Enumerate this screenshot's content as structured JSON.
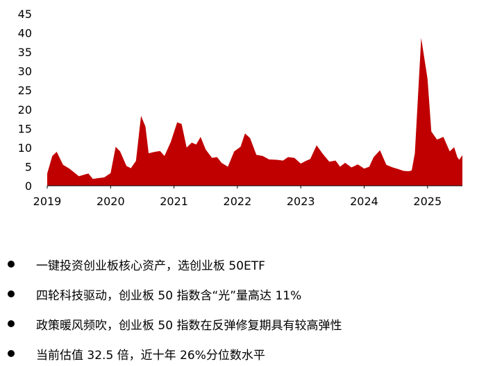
{
  "chart_data": {
    "type": "area",
    "title": "",
    "xlabel": "",
    "ylabel": "",
    "color": "#C00000",
    "ylim": [
      0,
      45
    ],
    "y_ticks": [
      0,
      5,
      10,
      15,
      20,
      25,
      30,
      35,
      40,
      45
    ],
    "xlim": [
      2019.0,
      2025.55
    ],
    "x_ticks": [
      "2019",
      "2020",
      "2021",
      "2022",
      "2023",
      "2024",
      "2025"
    ],
    "grid": false,
    "legend": "none",
    "x": [
      2019.0,
      2019.08,
      2019.15,
      2019.25,
      2019.35,
      2019.5,
      2019.6,
      2019.65,
      2019.72,
      2019.8,
      2019.9,
      2020.0,
      2020.08,
      2020.15,
      2020.25,
      2020.32,
      2020.4,
      2020.48,
      2020.55,
      2020.6,
      2020.7,
      2020.78,
      2020.85,
      2020.95,
      2021.05,
      2021.12,
      2021.2,
      2021.28,
      2021.35,
      2021.42,
      2021.5,
      2021.6,
      2021.68,
      2021.75,
      2021.85,
      2021.95,
      2022.05,
      2022.12,
      2022.2,
      2022.3,
      2022.4,
      2022.5,
      2022.62,
      2022.72,
      2022.8,
      2022.9,
      2023.0,
      2023.08,
      2023.15,
      2023.25,
      2023.35,
      2023.45,
      2023.55,
      2023.62,
      2023.7,
      2023.8,
      2023.9,
      2024.0,
      2024.08,
      2024.15,
      2024.25,
      2024.35,
      2024.45,
      2024.55,
      2024.62,
      2024.7,
      2024.75,
      2024.8,
      2024.9,
      2025.0,
      2025.06,
      2025.15,
      2025.25,
      2025.35,
      2025.42,
      2025.47,
      2025.5,
      2025.55
    ],
    "values": [
      3.2,
      7.8,
      8.9,
      5.5,
      4.5,
      2.5,
      3.0,
      3.2,
      1.8,
      2.0,
      2.2,
      3.3,
      10.2,
      9.0,
      5.2,
      4.6,
      6.5,
      18.3,
      15.5,
      8.5,
      8.9,
      9.1,
      7.8,
      11.5,
      16.6,
      16.2,
      10.0,
      11.3,
      10.8,
      12.8,
      9.5,
      7.3,
      7.5,
      6.0,
      5.0,
      9.0,
      10.2,
      13.7,
      12.5,
      8.1,
      7.8,
      6.9,
      6.8,
      6.6,
      7.5,
      7.3,
      5.8,
      6.5,
      7.0,
      10.6,
      8.3,
      6.3,
      6.6,
      5.0,
      6.0,
      4.8,
      5.6,
      4.5,
      5.0,
      7.5,
      9.3,
      5.5,
      4.8,
      4.3,
      3.9,
      3.8,
      4.0,
      8.5,
      38.7,
      28.0,
      14.2,
      12.1,
      12.8,
      9.0,
      10.1,
      7.5,
      6.8,
      8.0
    ]
  },
  "bullets": [
    "一键投资创业板核心资产，选创业板 50ETF",
    "四轮科技驱动，创业板 50 指数含“光”量高达 11%",
    "政策暖风频吹，创业板 50 指数在反弹修复期具有较高弹性",
    "当前估值 32.5 倍，近十年 26%分位数水平"
  ]
}
